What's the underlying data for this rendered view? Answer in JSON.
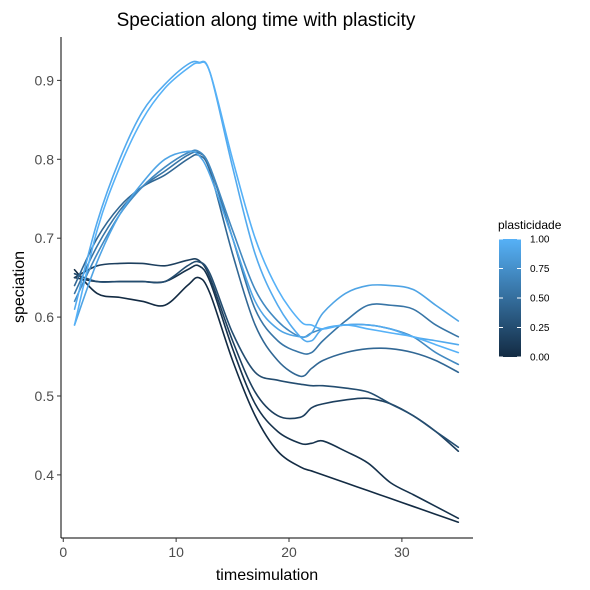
{
  "chart_data": {
    "type": "line",
    "title": "Speciation along time with plasticity",
    "xlabel": "timesimulation",
    "ylabel": "speciation",
    "xlim": [
      -0.2,
      36.3
    ],
    "ylim": [
      0.32,
      0.955
    ],
    "x_ticks": [
      0,
      10,
      20,
      30
    ],
    "y_ticks": [
      0.4,
      0.5,
      0.6,
      0.7,
      0.8,
      0.9
    ],
    "grid": false,
    "legend": {
      "title": "plasticidade",
      "placement": "right",
      "type": "colorbar",
      "low_color": "#132B43",
      "high_color": "#56B1F7",
      "min": 0,
      "max": 1,
      "ticks": [
        "0.00",
        "0.25",
        "0.50",
        "0.75",
        "1.00"
      ]
    },
    "x": [
      1,
      3,
      5,
      7,
      9,
      11,
      12,
      13,
      15,
      17,
      19,
      21,
      22,
      23,
      25,
      27,
      29,
      31,
      33,
      35
    ],
    "series": [
      {
        "plasticity": 1.0,
        "values": [
          0.59,
          0.71,
          0.79,
          0.85,
          0.89,
          0.915,
          0.922,
          0.91,
          0.8,
          0.7,
          0.635,
          0.595,
          0.59,
          0.585,
          0.59,
          0.585,
          0.58,
          0.575,
          0.565,
          0.555
        ]
      },
      {
        "plasticity": 0.95,
        "values": [
          0.61,
          0.72,
          0.8,
          0.86,
          0.895,
          0.92,
          0.923,
          0.91,
          0.79,
          0.68,
          0.615,
          0.575,
          0.57,
          0.585,
          0.59,
          0.59,
          0.585,
          0.575,
          0.57,
          0.565
        ]
      },
      {
        "plasticity": 0.9,
        "values": [
          0.59,
          0.67,
          0.73,
          0.77,
          0.8,
          0.81,
          0.805,
          0.78,
          0.7,
          0.62,
          0.585,
          0.575,
          0.58,
          0.605,
          0.63,
          0.64,
          0.64,
          0.635,
          0.615,
          0.595
        ]
      },
      {
        "plasticity": 0.7,
        "values": [
          0.62,
          0.68,
          0.73,
          0.765,
          0.79,
          0.808,
          0.81,
          0.79,
          0.71,
          0.635,
          0.595,
          0.575,
          0.58,
          0.585,
          0.59,
          0.59,
          0.585,
          0.575,
          0.555,
          0.54
        ]
      },
      {
        "plasticity": 0.55,
        "values": [
          0.63,
          0.69,
          0.735,
          0.765,
          0.785,
          0.805,
          0.808,
          0.79,
          0.7,
          0.61,
          0.57,
          0.555,
          0.555,
          0.57,
          0.595,
          0.615,
          0.615,
          0.61,
          0.59,
          0.575
        ]
      },
      {
        "plasticity": 0.45,
        "values": [
          0.64,
          0.7,
          0.74,
          0.765,
          0.78,
          0.8,
          0.805,
          0.785,
          0.68,
          0.59,
          0.545,
          0.525,
          0.535,
          0.545,
          0.555,
          0.56,
          0.56,
          0.555,
          0.545,
          0.53
        ]
      },
      {
        "plasticity": 0.25,
        "values": [
          0.655,
          0.645,
          0.645,
          0.645,
          0.645,
          0.665,
          0.67,
          0.655,
          0.58,
          0.53,
          0.52,
          0.515,
          0.513,
          0.513,
          0.51,
          0.505,
          0.49,
          0.475,
          0.455,
          0.435
        ]
      },
      {
        "plasticity": 0.15,
        "values": [
          0.65,
          0.665,
          0.668,
          0.668,
          0.665,
          0.672,
          0.672,
          0.65,
          0.57,
          0.505,
          0.475,
          0.473,
          0.485,
          0.49,
          0.495,
          0.497,
          0.49,
          0.475,
          0.455,
          0.43
        ]
      },
      {
        "plasticity": 0.05,
        "values": [
          0.65,
          0.645,
          0.645,
          0.645,
          0.645,
          0.66,
          0.665,
          0.645,
          0.56,
          0.49,
          0.455,
          0.44,
          0.44,
          0.443,
          0.43,
          0.415,
          0.39,
          0.375,
          0.36,
          0.345
        ]
      },
      {
        "plasticity": 0.0,
        "values": [
          0.66,
          0.63,
          0.625,
          0.62,
          0.615,
          0.64,
          0.65,
          0.63,
          0.545,
          0.475,
          0.43,
          0.41,
          0.405,
          0.4,
          0.39,
          0.38,
          0.37,
          0.36,
          0.35,
          0.34
        ]
      }
    ]
  }
}
